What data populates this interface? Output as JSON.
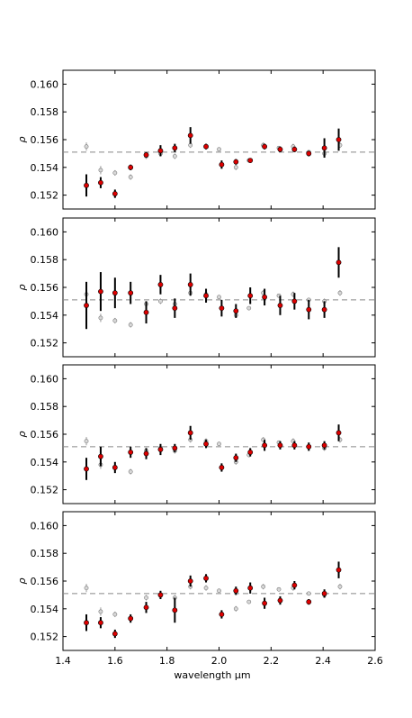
{
  "figure": {
    "xlabel": "wavelength μm",
    "reference_line": 0.1551
  },
  "chart_data": [
    {
      "type": "scatter",
      "title": "",
      "xlabel": "",
      "ylabel": "ρ",
      "xlim": [
        1.4,
        2.6
      ],
      "ylim": [
        0.151,
        0.161
      ],
      "xticks": [
        "1.4",
        "1.6",
        "1.8",
        "2.0",
        "2.2",
        "2.4",
        "2.6"
      ],
      "yticks": [
        "0.152",
        "0.154",
        "0.156",
        "0.158",
        "0.160"
      ],
      "grid": false,
      "legend": "none",
      "reference_line": 0.1551,
      "series": [
        {
          "color": "#aaaaaa",
          "x": [
            1.49,
            1.545,
            1.6,
            1.66,
            1.72,
            1.775,
            1.83,
            1.89,
            1.95,
            2.0,
            2.065,
            2.115,
            2.17,
            2.23,
            2.285,
            2.345,
            2.405,
            2.465
          ],
          "y": [
            0.1555,
            0.1538,
            0.1536,
            0.1533,
            0.1548,
            0.155,
            0.1548,
            0.1556,
            0.1555,
            0.1553,
            0.154,
            0.1545,
            0.1556,
            0.1554,
            0.1555,
            0.1551,
            0.155,
            0.1556
          ],
          "err": [
            0.0003,
            0.0003,
            0.0002,
            0.0002,
            0.0002,
            0.0002,
            0.0002,
            0.0002,
            0.0002,
            0.0001,
            0.0002,
            0.0001,
            0.0002,
            0.0001,
            0.0002,
            0.0001,
            0.0002,
            0.0002
          ]
        },
        {
          "color": "#dd0000",
          "x": [
            1.49,
            1.545,
            1.6,
            1.66,
            1.72,
            1.775,
            1.83,
            1.89,
            1.95,
            2.01,
            2.065,
            2.12,
            2.175,
            2.235,
            2.29,
            2.345,
            2.405,
            2.46
          ],
          "y": [
            0.1527,
            0.1529,
            0.1521,
            0.154,
            0.1549,
            0.1552,
            0.1554,
            0.1563,
            0.1555,
            0.1542,
            0.1544,
            0.1545,
            0.1555,
            0.1553,
            0.1553,
            0.155,
            0.1554,
            0.156
          ],
          "err": [
            0.0008,
            0.0004,
            0.0003,
            0.0002,
            0.0002,
            0.0004,
            0.0003,
            0.0006,
            0.0002,
            0.0003,
            0.0002,
            0.0001,
            0.0002,
            0.0002,
            0.0002,
            0.0002,
            0.0007,
            0.0008
          ]
        }
      ]
    },
    {
      "type": "scatter",
      "title": "",
      "xlabel": "",
      "ylabel": "ρ",
      "xlim": [
        1.4,
        2.6
      ],
      "ylim": [
        0.151,
        0.161
      ],
      "xticks": [
        "1.4",
        "1.6",
        "1.8",
        "2.0",
        "2.2",
        "2.4",
        "2.6"
      ],
      "yticks": [
        "0.152",
        "0.154",
        "0.156",
        "0.158",
        "0.160"
      ],
      "grid": false,
      "legend": "none",
      "reference_line": 0.1551,
      "series": [
        {
          "color": "#aaaaaa",
          "x": [
            1.49,
            1.545,
            1.6,
            1.66,
            1.72,
            1.775,
            1.83,
            1.89,
            1.95,
            2.0,
            2.065,
            2.115,
            2.17,
            2.23,
            2.285,
            2.345,
            2.405,
            2.465
          ],
          "y": [
            0.1555,
            0.1538,
            0.1536,
            0.1533,
            0.1548,
            0.155,
            0.1548,
            0.1556,
            0.1555,
            0.1553,
            0.154,
            0.1545,
            0.1556,
            0.1554,
            0.1555,
            0.1551,
            0.155,
            0.1556
          ],
          "err": [
            0.0003,
            0.0003,
            0.0002,
            0.0002,
            0.0002,
            0.0002,
            0.0002,
            0.0002,
            0.0002,
            0.0001,
            0.0002,
            0.0001,
            0.0002,
            0.0001,
            0.0002,
            0.0001,
            0.0002,
            0.0002
          ]
        },
        {
          "color": "#dd0000",
          "x": [
            1.49,
            1.545,
            1.6,
            1.66,
            1.72,
            1.775,
            1.83,
            1.89,
            1.95,
            2.01,
            2.065,
            2.12,
            2.175,
            2.235,
            2.29,
            2.345,
            2.405,
            2.46
          ],
          "y": [
            0.1547,
            0.1557,
            0.1556,
            0.1556,
            0.1542,
            0.1562,
            0.1545,
            0.1562,
            0.1554,
            0.1545,
            0.1543,
            0.1554,
            0.1553,
            0.1547,
            0.155,
            0.1544,
            0.1544,
            0.1578
          ],
          "err": [
            0.0017,
            0.0014,
            0.0011,
            0.0008,
            0.0008,
            0.0007,
            0.0007,
            0.0008,
            0.0005,
            0.0006,
            0.0005,
            0.0006,
            0.0006,
            0.0007,
            0.0006,
            0.0007,
            0.0006,
            0.0011
          ]
        }
      ]
    },
    {
      "type": "scatter",
      "title": "",
      "xlabel": "",
      "ylabel": "ρ",
      "xlim": [
        1.4,
        2.6
      ],
      "ylim": [
        0.151,
        0.161
      ],
      "xticks": [
        "1.4",
        "1.6",
        "1.8",
        "2.0",
        "2.2",
        "2.4",
        "2.6"
      ],
      "yticks": [
        "0.152",
        "0.154",
        "0.156",
        "0.158",
        "0.160"
      ],
      "grid": false,
      "legend": "none",
      "reference_line": 0.1551,
      "series": [
        {
          "color": "#aaaaaa",
          "x": [
            1.49,
            1.545,
            1.6,
            1.66,
            1.72,
            1.775,
            1.83,
            1.89,
            1.95,
            2.0,
            2.065,
            2.115,
            2.17,
            2.23,
            2.285,
            2.345,
            2.405,
            2.465
          ],
          "y": [
            0.1555,
            0.1538,
            0.1536,
            0.1533,
            0.1548,
            0.155,
            0.1548,
            0.1556,
            0.1555,
            0.1553,
            0.154,
            0.1545,
            0.1556,
            0.1554,
            0.1555,
            0.1551,
            0.155,
            0.1556
          ],
          "err": [
            0.0003,
            0.0003,
            0.0002,
            0.0002,
            0.0002,
            0.0002,
            0.0002,
            0.0002,
            0.0002,
            0.0001,
            0.0002,
            0.0001,
            0.0002,
            0.0001,
            0.0002,
            0.0001,
            0.0002,
            0.0002
          ]
        },
        {
          "color": "#dd0000",
          "x": [
            1.49,
            1.545,
            1.6,
            1.66,
            1.72,
            1.775,
            1.83,
            1.89,
            1.95,
            2.01,
            2.065,
            2.12,
            2.175,
            2.235,
            2.29,
            2.345,
            2.405,
            2.46
          ],
          "y": [
            0.1535,
            0.1544,
            0.1536,
            0.1547,
            0.1546,
            0.1549,
            0.155,
            0.1561,
            0.1553,
            0.1536,
            0.1543,
            0.1547,
            0.1552,
            0.1552,
            0.1552,
            0.1551,
            0.1552,
            0.1561
          ],
          "err": [
            0.0008,
            0.0007,
            0.0004,
            0.0004,
            0.0004,
            0.0004,
            0.0003,
            0.0005,
            0.0003,
            0.0003,
            0.0003,
            0.0003,
            0.0004,
            0.0003,
            0.0003,
            0.0003,
            0.0003,
            0.0006
          ]
        }
      ]
    },
    {
      "type": "scatter",
      "title": "",
      "xlabel": "wavelength μm",
      "ylabel": "ρ",
      "xlim": [
        1.4,
        2.6
      ],
      "ylim": [
        0.151,
        0.161
      ],
      "xticks": [
        "1.4",
        "1.6",
        "1.8",
        "2.0",
        "2.2",
        "2.4",
        "2.6"
      ],
      "yticks": [
        "0.152",
        "0.154",
        "0.156",
        "0.158",
        "0.160"
      ],
      "grid": false,
      "legend": "none",
      "reference_line": 0.1551,
      "series": [
        {
          "color": "#aaaaaa",
          "x": [
            1.49,
            1.545,
            1.6,
            1.66,
            1.72,
            1.775,
            1.83,
            1.89,
            1.95,
            2.0,
            2.065,
            2.115,
            2.17,
            2.23,
            2.285,
            2.345,
            2.405,
            2.465
          ],
          "y": [
            0.1555,
            0.1538,
            0.1536,
            0.1533,
            0.1548,
            0.155,
            0.1548,
            0.1556,
            0.1555,
            0.1553,
            0.154,
            0.1545,
            0.1556,
            0.1554,
            0.1555,
            0.1551,
            0.155,
            0.1556
          ],
          "err": [
            0.0003,
            0.0003,
            0.0002,
            0.0002,
            0.0002,
            0.0002,
            0.0002,
            0.0002,
            0.0002,
            0.0001,
            0.0002,
            0.0001,
            0.0002,
            0.0001,
            0.0002,
            0.0001,
            0.0002,
            0.0002
          ]
        },
        {
          "color": "#dd0000",
          "x": [
            1.49,
            1.545,
            1.6,
            1.66,
            1.72,
            1.775,
            1.83,
            1.89,
            1.95,
            2.01,
            2.065,
            2.12,
            2.175,
            2.235,
            2.29,
            2.345,
            2.405,
            2.46
          ],
          "y": [
            0.153,
            0.153,
            0.1522,
            0.1533,
            0.1541,
            0.155,
            0.1539,
            0.156,
            0.1562,
            0.1536,
            0.1553,
            0.1555,
            0.1544,
            0.1546,
            0.1557,
            0.1545,
            0.1551,
            0.1568
          ],
          "err": [
            0.0006,
            0.0004,
            0.0003,
            0.0003,
            0.0004,
            0.0003,
            0.0009,
            0.0004,
            0.0003,
            0.0003,
            0.0003,
            0.0004,
            0.0004,
            0.0003,
            0.0003,
            0.0002,
            0.0003,
            0.0006
          ]
        }
      ]
    }
  ]
}
